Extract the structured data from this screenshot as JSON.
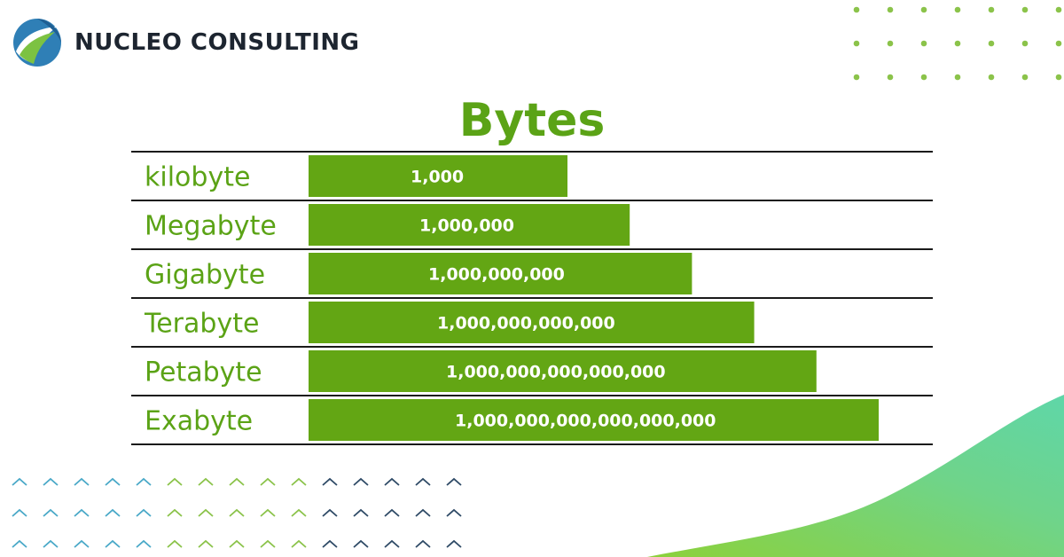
{
  "brand": {
    "name": "NUCLEO CONSULTING"
  },
  "colors": {
    "accent": "#5ba316",
    "bar": "#63a614",
    "rule": "#1a1a1a",
    "label": "#5ba316",
    "chevron_blue": "#4aa9c8",
    "chevron_green": "#8bc34a",
    "chevron_dark": "#2e4a66",
    "dot": "#8bc34a"
  },
  "chart_data": {
    "type": "bar",
    "orientation": "horizontal",
    "title": "Bytes",
    "categories": [
      "kilobyte",
      "Megabyte",
      "Gigabyte",
      "Terabyte",
      "Petabyte",
      "Exabyte"
    ],
    "value_labels": [
      "1,000",
      "1,000,000",
      "1,000,000,000",
      "1,000,000,000,000",
      "1,000,000,000,000,000",
      "1,000,000,000,000,000,000"
    ],
    "values": [
      1000,
      1000000,
      1000000000,
      1000000000000,
      1000000000000000,
      1000000000000000000
    ],
    "scale": "log",
    "grid": false,
    "legend": "none"
  }
}
